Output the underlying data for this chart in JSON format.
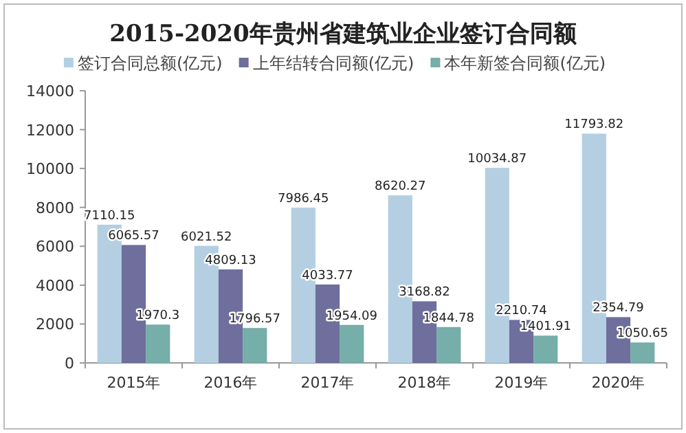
{
  "chart_data": {
    "type": "bar",
    "title": "2015-2020年贵州省建筑业企业签订合同额",
    "categories": [
      "2015年",
      "2016年",
      "2017年",
      "2018年",
      "2019年",
      "2020年"
    ],
    "series": [
      {
        "name": "签订合同总额(亿元)",
        "color": "#b4cfe2",
        "values": [
          7110.15,
          6021.52,
          7986.45,
          8620.27,
          10034.87,
          11793.82
        ]
      },
      {
        "name": "上年结转合同额(亿元)",
        "color": "#6e6f9c",
        "values": [
          6065.57,
          4809.13,
          4033.77,
          3168.82,
          2210.74,
          2354.79
        ]
      },
      {
        "name": "本年新签合同额(亿元)",
        "color": "#76aea9",
        "values": [
          1970.3,
          1796.57,
          1954.09,
          1844.78,
          1401.91,
          1050.65
        ]
      }
    ],
    "ylim": [
      0,
      14000
    ],
    "yticks": [
      0,
      2000,
      4000,
      6000,
      8000,
      10000,
      12000,
      14000
    ],
    "legend": "top",
    "data_labels": true
  }
}
